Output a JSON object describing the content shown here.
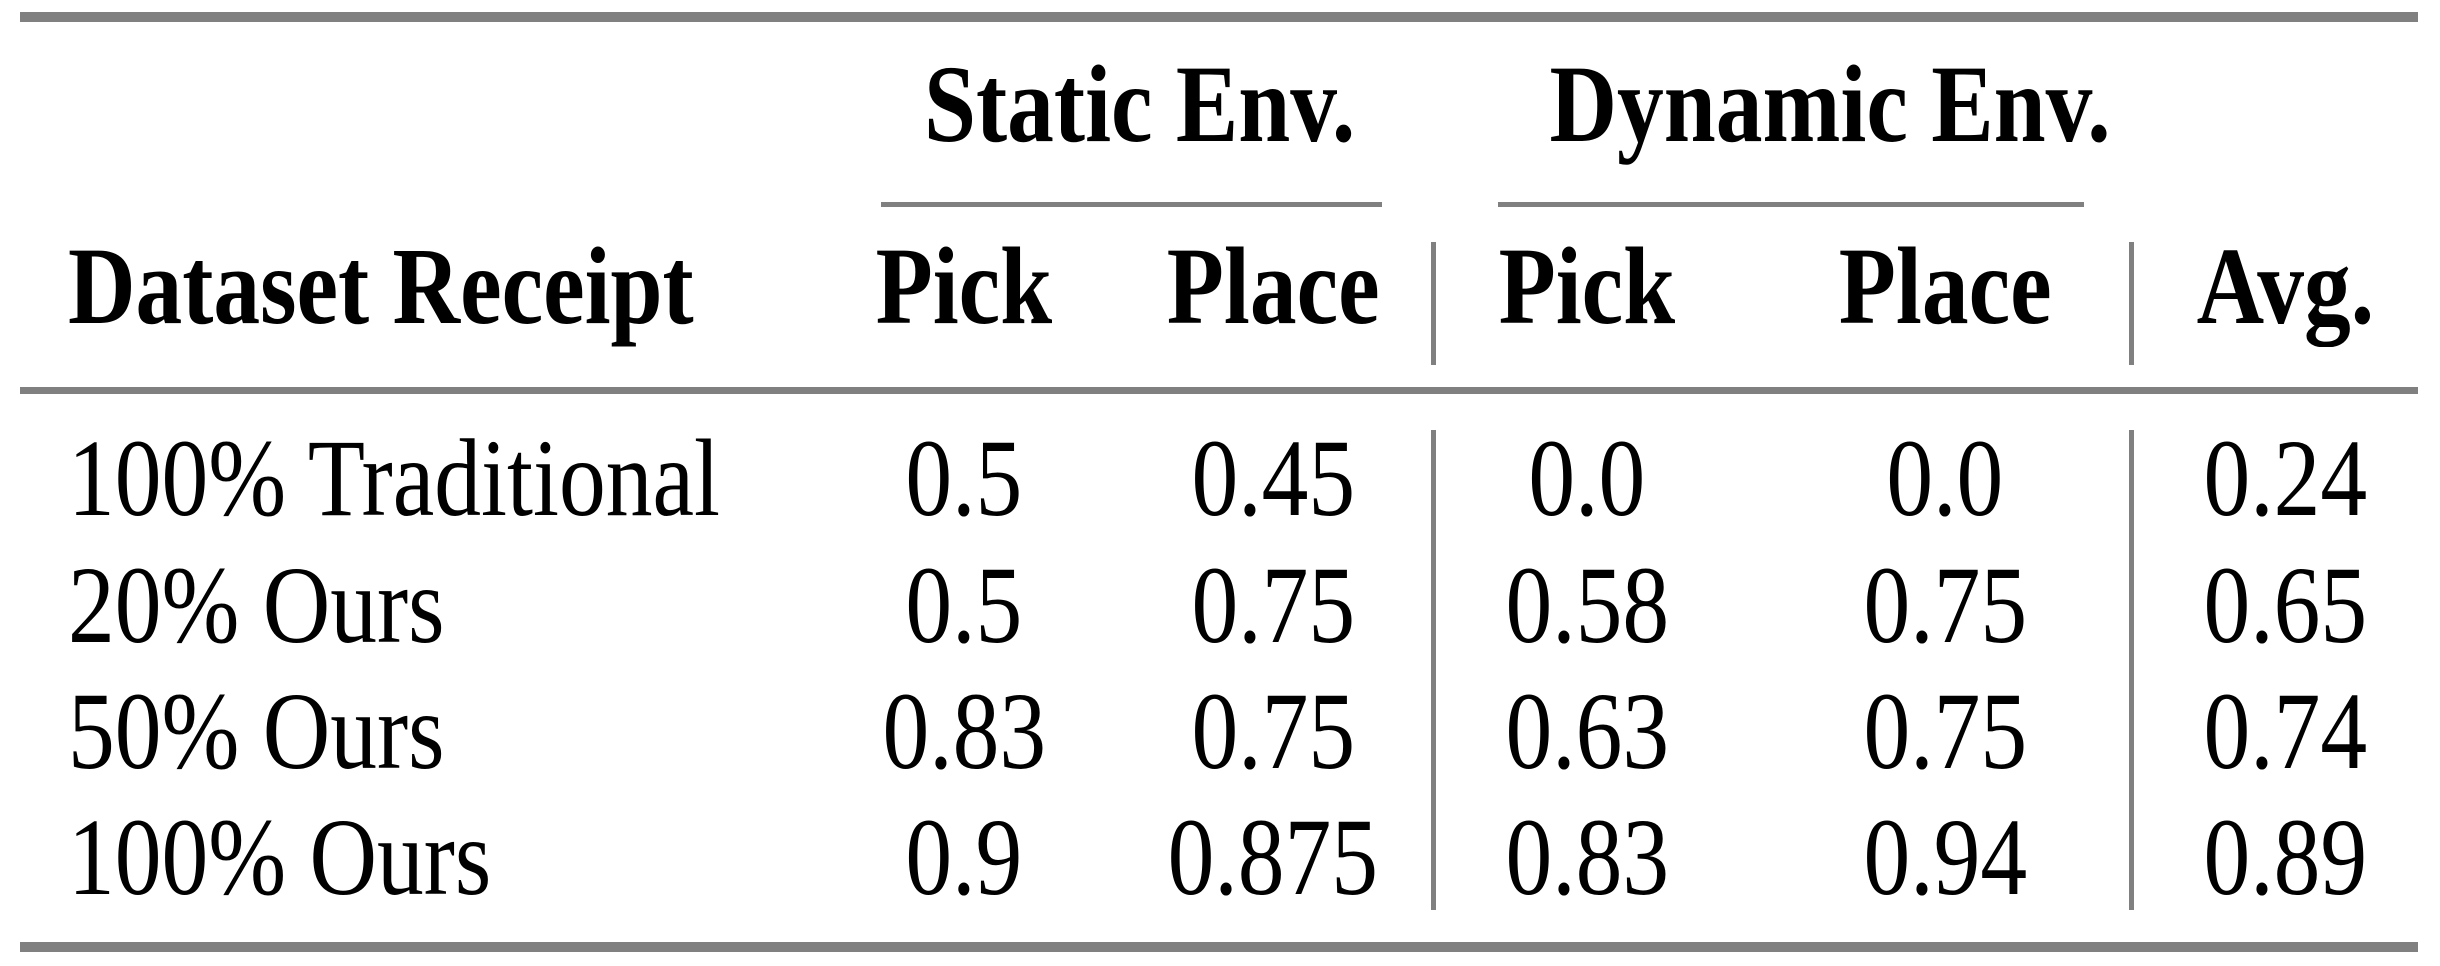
{
  "table": {
    "group_headers": [
      {
        "label": "Static Env."
      },
      {
        "label": "Dynamic Env."
      }
    ],
    "columns": [
      "Dataset Receipt",
      "Pick",
      "Place",
      "Pick",
      "Place",
      "Avg."
    ],
    "rows": [
      {
        "label": "100% Traditional",
        "values": [
          "0.5",
          "0.45",
          "0.0",
          "0.0",
          "0.24"
        ]
      },
      {
        "label": "20% Ours",
        "values": [
          "0.5",
          "0.75",
          "0.58",
          "0.75",
          "0.65"
        ]
      },
      {
        "label": "50% Ours",
        "values": [
          "0.83",
          "0.75",
          "0.63",
          "0.75",
          "0.74"
        ]
      },
      {
        "label": "100% Ours",
        "values": [
          "0.9",
          "0.875",
          "0.83",
          "0.94",
          "0.89"
        ]
      }
    ],
    "colors": {
      "rule_gray": "#808080",
      "text": "#000000",
      "background": "#ffffff"
    }
  },
  "chart_data": {
    "type": "table",
    "title": "",
    "columns": [
      "Dataset Receipt",
      "Static Env. Pick",
      "Static Env. Place",
      "Dynamic Env. Pick",
      "Dynamic Env. Place",
      "Avg."
    ],
    "rows": [
      [
        "100% Traditional",
        0.5,
        0.45,
        0.0,
        0.0,
        0.24
      ],
      [
        "20% Ours",
        0.5,
        0.75,
        0.58,
        0.75,
        0.65
      ],
      [
        "50% Ours",
        0.83,
        0.75,
        0.63,
        0.75,
        0.74
      ],
      [
        "100% Ours",
        0.9,
        0.875,
        0.83,
        0.94,
        0.89
      ]
    ]
  }
}
